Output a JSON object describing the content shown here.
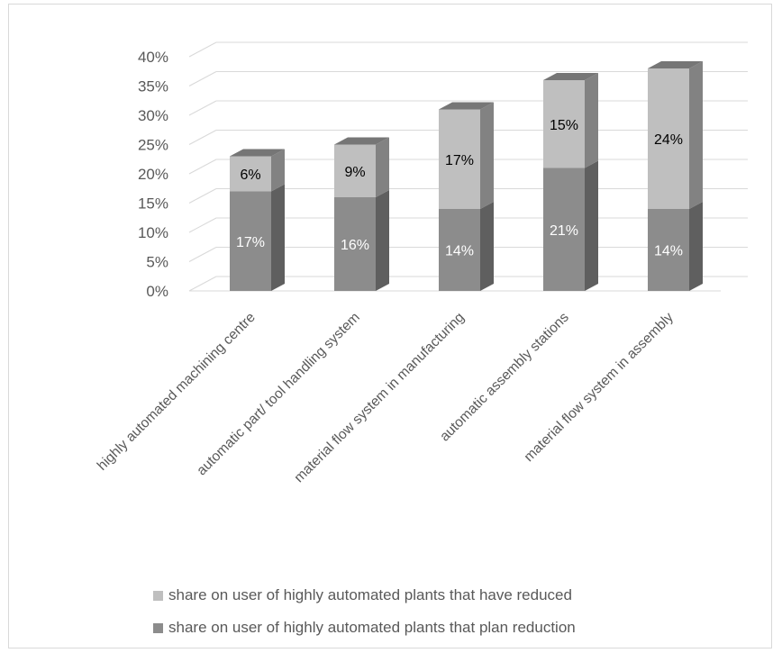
{
  "chart_data": {
    "type": "bar",
    "stacked": true,
    "three_d": true,
    "categories": [
      "highly automated machining centre",
      "automatic part/ tool handling system",
      "material flow system in manufacturing",
      "automatic assembly stations",
      "material flow system in assembly"
    ],
    "series": [
      {
        "name": "share on user of highly automated plants that plan reduction",
        "values": [
          17,
          16,
          14,
          21,
          14
        ],
        "labels": [
          "17%",
          "16%",
          "14%",
          "21%",
          "14%"
        ],
        "color": "#8c8c8c"
      },
      {
        "name": "share on user of highly automated plants that have reduced",
        "values": [
          6,
          9,
          17,
          15,
          24
        ],
        "labels": [
          "6%",
          "9%",
          "17%",
          "15%",
          "24%"
        ],
        "color": "#bfbfbf"
      }
    ],
    "y_ticks": [
      "0%",
      "5%",
      "10%",
      "15%",
      "20%",
      "25%",
      "30%",
      "35%",
      "40%"
    ],
    "ylim": [
      0,
      40
    ],
    "grid": true,
    "legend_position": "bottom",
    "colors": {
      "grid": "#d9d9d9",
      "text": "#595959"
    }
  }
}
